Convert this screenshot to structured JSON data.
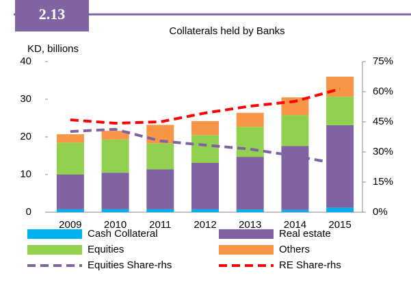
{
  "chart_data": {
    "type": "bar",
    "stacked": true,
    "badge": "2.13",
    "title": "Collaterals held by Banks",
    "y_label": "KD, billions",
    "categories": [
      "2009",
      "2010",
      "2011",
      "2012",
      "2013",
      "2014",
      "2015"
    ],
    "series": [
      {
        "name": "Cash Collateral",
        "color": "#00b0f0",
        "values": [
          0.8,
          0.8,
          0.8,
          0.8,
          0.7,
          0.6,
          1.2
        ]
      },
      {
        "name": "Real estate",
        "color": "#8064a2",
        "values": [
          9.2,
          9.7,
          10.6,
          12.3,
          14.0,
          17.0,
          21.9
        ]
      },
      {
        "name": "Equities",
        "color": "#92d050",
        "values": [
          8.5,
          8.8,
          6.9,
          7.4,
          8.0,
          8.2,
          7.6
        ]
      },
      {
        "name": "Others",
        "color": "#f79646",
        "values": [
          2.2,
          2.3,
          4.9,
          3.7,
          3.7,
          4.7,
          5.3
        ]
      },
      {
        "name": "Equities Share-rhs",
        "color": "#8064a2",
        "type": "line",
        "axis": "y2",
        "values": [
          40.2,
          41.3,
          35.5,
          33.4,
          31.4,
          28.0,
          23.9
        ]
      },
      {
        "name": "RE Share-rhs",
        "color": "#ff0000",
        "type": "line",
        "axis": "y2",
        "values": [
          46.0,
          44.3,
          45.0,
          49.4,
          52.8,
          55.2,
          61.4
        ]
      }
    ],
    "ylim": [
      0,
      40
    ],
    "yticks": [
      0,
      10,
      20,
      30,
      40
    ],
    "y2lim": [
      0,
      75
    ],
    "y2ticks": [
      {
        "value": 0,
        "label": "0%"
      },
      {
        "value": 15,
        "label": "15%"
      },
      {
        "value": 30,
        "label": "30%"
      },
      {
        "value": 45,
        "label": "45%"
      },
      {
        "value": 60,
        "label": "60%"
      },
      {
        "value": 75,
        "label": "75%"
      }
    ],
    "grid": false
  }
}
